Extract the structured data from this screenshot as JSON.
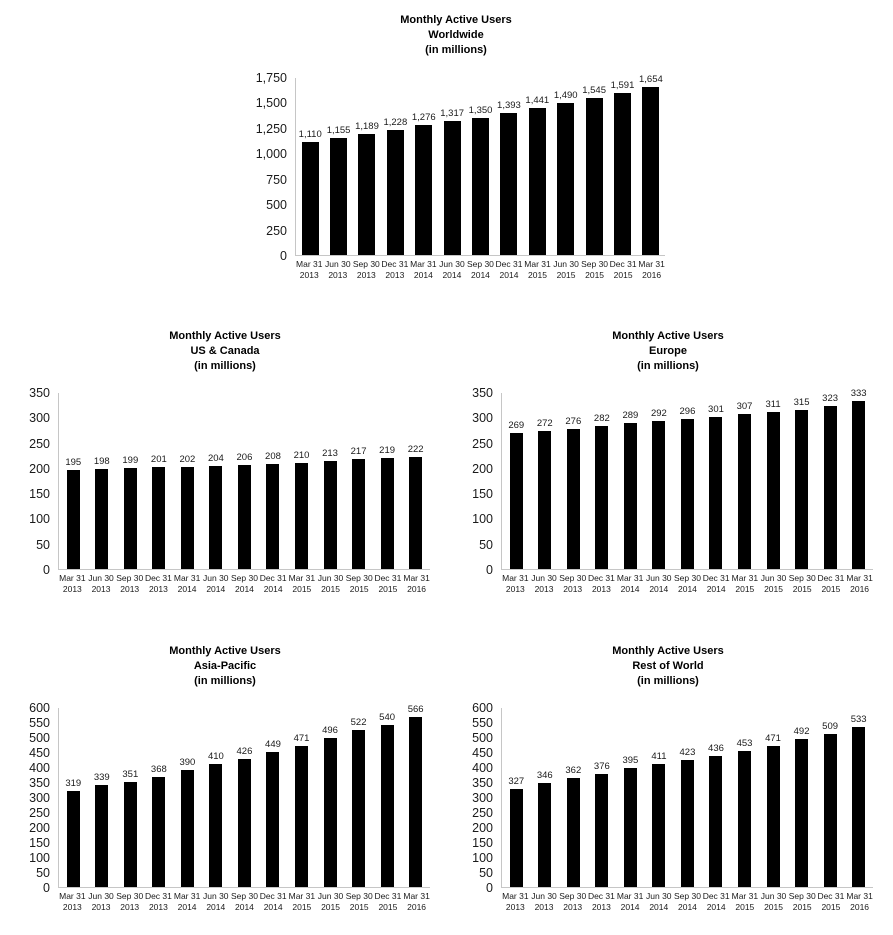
{
  "colors": {
    "bar": "#000000",
    "axis_line": "#c6c6c6",
    "title_text": "#000000",
    "tick_text": "#1a1a1a"
  },
  "chart_data": [
    {
      "type": "bar",
      "id": "worldwide",
      "title_lines": [
        "Monthly Active Users",
        "Worldwide",
        "(in millions)"
      ],
      "categories": [
        [
          "Mar 31",
          "2013"
        ],
        [
          "Jun 30",
          "2013"
        ],
        [
          "Sep 30",
          "2013"
        ],
        [
          "Dec 31",
          "2013"
        ],
        [
          "Mar 31",
          "2014"
        ],
        [
          "Jun 30",
          "2014"
        ],
        [
          "Sep 30",
          "2014"
        ],
        [
          "Dec 31",
          "2014"
        ],
        [
          "Mar 31",
          "2015"
        ],
        [
          "Jun 30",
          "2015"
        ],
        [
          "Sep 30",
          "2015"
        ],
        [
          "Dec 31",
          "2015"
        ],
        [
          "Mar 31",
          "2016"
        ]
      ],
      "values": [
        1110,
        1155,
        1189,
        1228,
        1276,
        1317,
        1350,
        1393,
        1441,
        1490,
        1545,
        1591,
        1654
      ],
      "ylim": [
        0,
        1750
      ],
      "ytick_step": 250,
      "thousands_separator": true,
      "grid": false,
      "legend": false,
      "bar_color": "#000000"
    },
    {
      "type": "bar",
      "id": "us-canada",
      "title_lines": [
        "Monthly Active Users",
        "US & Canada",
        "(in millions)"
      ],
      "categories": [
        [
          "Mar 31",
          "2013"
        ],
        [
          "Jun 30",
          "2013"
        ],
        [
          "Sep 30",
          "2013"
        ],
        [
          "Dec 31",
          "2013"
        ],
        [
          "Mar 31",
          "2014"
        ],
        [
          "Jun 30",
          "2014"
        ],
        [
          "Sep 30",
          "2014"
        ],
        [
          "Dec 31",
          "2014"
        ],
        [
          "Mar 31",
          "2015"
        ],
        [
          "Jun 30",
          "2015"
        ],
        [
          "Sep 30",
          "2015"
        ],
        [
          "Dec 31",
          "2015"
        ],
        [
          "Mar 31",
          "2016"
        ]
      ],
      "values": [
        195,
        198,
        199,
        201,
        202,
        204,
        206,
        208,
        210,
        213,
        217,
        219,
        222
      ],
      "ylim": [
        0,
        350
      ],
      "ytick_step": 50,
      "thousands_separator": false,
      "grid": false,
      "legend": false,
      "bar_color": "#000000"
    },
    {
      "type": "bar",
      "id": "europe",
      "title_lines": [
        "Monthly Active Users",
        "Europe",
        "(in millions)"
      ],
      "categories": [
        [
          "Mar 31",
          "2013"
        ],
        [
          "Jun 30",
          "2013"
        ],
        [
          "Sep 30",
          "2013"
        ],
        [
          "Dec 31",
          "2013"
        ],
        [
          "Mar 31",
          "2014"
        ],
        [
          "Jun 30",
          "2014"
        ],
        [
          "Sep 30",
          "2014"
        ],
        [
          "Dec 31",
          "2014"
        ],
        [
          "Mar 31",
          "2015"
        ],
        [
          "Jun 30",
          "2015"
        ],
        [
          "Sep 30",
          "2015"
        ],
        [
          "Dec 31",
          "2015"
        ],
        [
          "Mar 31",
          "2016"
        ]
      ],
      "values": [
        269,
        272,
        276,
        282,
        289,
        292,
        296,
        301,
        307,
        311,
        315,
        323,
        333
      ],
      "ylim": [
        0,
        350
      ],
      "ytick_step": 50,
      "thousands_separator": false,
      "grid": false,
      "legend": false,
      "bar_color": "#000000"
    },
    {
      "type": "bar",
      "id": "asia-pacific",
      "title_lines": [
        "Monthly Active Users",
        "Asia-Pacific",
        "(in millions)"
      ],
      "categories": [
        [
          "Mar 31",
          "2013"
        ],
        [
          "Jun 30",
          "2013"
        ],
        [
          "Sep 30",
          "2013"
        ],
        [
          "Dec 31",
          "2013"
        ],
        [
          "Mar 31",
          "2014"
        ],
        [
          "Jun 30",
          "2014"
        ],
        [
          "Sep 30",
          "2014"
        ],
        [
          "Dec 31",
          "2014"
        ],
        [
          "Mar 31",
          "2015"
        ],
        [
          "Jun 30",
          "2015"
        ],
        [
          "Sep 30",
          "2015"
        ],
        [
          "Dec 31",
          "2015"
        ],
        [
          "Mar 31",
          "2016"
        ]
      ],
      "values": [
        319,
        339,
        351,
        368,
        390,
        410,
        426,
        449,
        471,
        496,
        522,
        540,
        566
      ],
      "ylim": [
        0,
        600
      ],
      "ytick_step": 50,
      "thousands_separator": false,
      "grid": false,
      "legend": false,
      "bar_color": "#000000"
    },
    {
      "type": "bar",
      "id": "rest-of-world",
      "title_lines": [
        "Monthly Active Users",
        "Rest of World",
        "(in millions)"
      ],
      "categories": [
        [
          "Mar 31",
          "2013"
        ],
        [
          "Jun 30",
          "2013"
        ],
        [
          "Sep 30",
          "2013"
        ],
        [
          "Dec 31",
          "2013"
        ],
        [
          "Mar 31",
          "2014"
        ],
        [
          "Jun 30",
          "2014"
        ],
        [
          "Sep 30",
          "2014"
        ],
        [
          "Dec 31",
          "2014"
        ],
        [
          "Mar 31",
          "2015"
        ],
        [
          "Jun 30",
          "2015"
        ],
        [
          "Sep 30",
          "2015"
        ],
        [
          "Dec 31",
          "2015"
        ],
        [
          "Mar 31",
          "2016"
        ]
      ],
      "values": [
        327,
        346,
        362,
        376,
        395,
        411,
        423,
        436,
        453,
        471,
        492,
        509,
        533
      ],
      "ylim": [
        0,
        600
      ],
      "ytick_step": 50,
      "thousands_separator": false,
      "grid": false,
      "legend": false,
      "bar_color": "#000000"
    }
  ]
}
